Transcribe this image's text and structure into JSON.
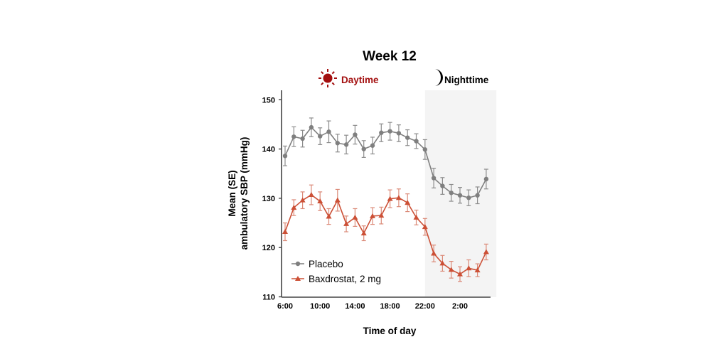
{
  "chart_data": {
    "type": "line",
    "title": "Week 12",
    "xlabel": "Time of day",
    "ylabel_lines": [
      "Mean (SE)",
      "ambulatory SBP (mmHg)"
    ],
    "ylim": [
      110,
      152
    ],
    "yticks": [
      110,
      120,
      130,
      140,
      150
    ],
    "x_hours": [
      6,
      7,
      8,
      9,
      10,
      11,
      12,
      13,
      14,
      15,
      16,
      17,
      18,
      19,
      20,
      21,
      22,
      23,
      24,
      25,
      26,
      27,
      28,
      29
    ],
    "xlim_hours": [
      6,
      30
    ],
    "xticks": [
      {
        "hour": 6,
        "label": "6:00"
      },
      {
        "hour": 10,
        "label": "10:00"
      },
      {
        "hour": 14,
        "label": "14:00"
      },
      {
        "hour": 18,
        "label": "18:00"
      },
      {
        "hour": 22,
        "label": "22:00"
      },
      {
        "hour": 26,
        "label": "2:00"
      }
    ],
    "periods": {
      "daytime": {
        "label": "Daytime",
        "icon": "sun-icon",
        "color": "#A30F0F"
      },
      "nighttime": {
        "label": "Nighttime",
        "icon": "moon-icon",
        "color": "#000000",
        "start_hour": 22,
        "end_hour": 30,
        "shade": "#F4F4F4"
      }
    },
    "grid": false,
    "legend_position": "bottom-left",
    "series": [
      {
        "name": "Placebo",
        "marker": "circle",
        "color": "#7F7F7F",
        "errcolor": "#8C8C8C",
        "values": [
          138.6,
          142.5,
          142.1,
          144.4,
          142.6,
          143.5,
          141.2,
          140.9,
          142.9,
          140.0,
          140.7,
          143.3,
          143.6,
          143.2,
          142.3,
          141.6,
          139.9,
          134.1,
          132.5,
          131.1,
          130.6,
          130.1,
          130.6,
          133.9
        ],
        "se": [
          2.0,
          2.0,
          1.7,
          1.9,
          1.7,
          2.2,
          1.8,
          1.9,
          1.9,
          1.7,
          1.7,
          1.8,
          1.8,
          1.7,
          1.6,
          1.5,
          2.0,
          2.0,
          1.7,
          1.7,
          1.6,
          1.6,
          1.7,
          2.0
        ]
      },
      {
        "name": "Baxdrostat, 2 mg",
        "marker": "triangle",
        "color": "#CC5036",
        "errcolor": "#DB8A78",
        "values": [
          123.2,
          128.1,
          129.6,
          130.7,
          129.4,
          126.3,
          129.6,
          124.8,
          126.1,
          122.9,
          126.4,
          126.5,
          129.9,
          130.1,
          129.1,
          126.1,
          124.2,
          118.8,
          116.8,
          115.5,
          114.6,
          115.8,
          115.4,
          119.1
        ],
        "se": [
          1.8,
          1.6,
          1.7,
          2.0,
          1.9,
          1.6,
          2.2,
          1.6,
          1.8,
          1.5,
          1.7,
          1.7,
          1.8,
          1.8,
          1.8,
          1.5,
          1.7,
          1.7,
          1.6,
          1.7,
          1.5,
          1.7,
          1.3,
          1.6
        ]
      }
    ]
  }
}
